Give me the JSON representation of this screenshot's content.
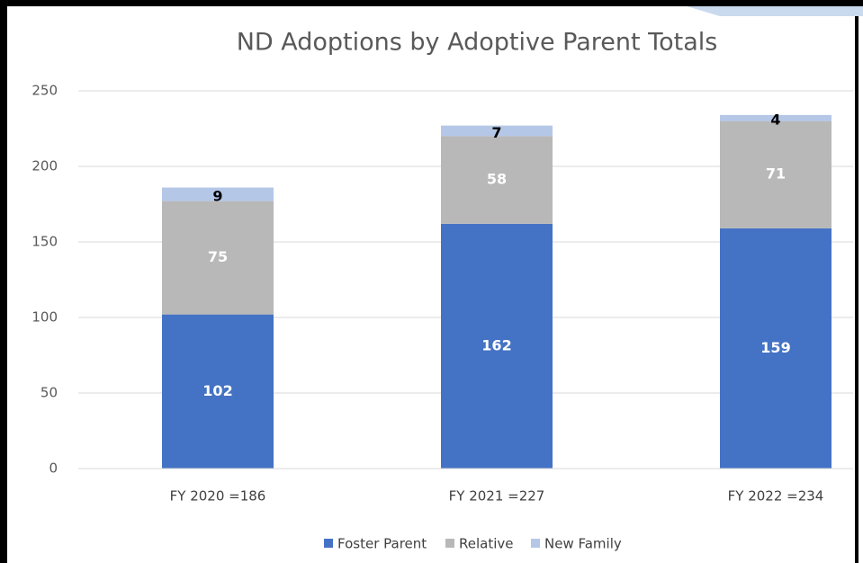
{
  "chart_data": {
    "type": "stacked_bar",
    "title": "ND Adoptions by Adoptive Parent Totals",
    "categories": [
      "FY 2020 =186",
      "FY 2021 =227",
      "FY 2022 =234"
    ],
    "series": [
      {
        "name": "Foster Parent",
        "color": "#4472c4",
        "values": [
          102,
          162,
          159
        ]
      },
      {
        "name": "Relative",
        "color": "#b8b8b8",
        "values": [
          75,
          58,
          71
        ]
      },
      {
        "name": "New Family",
        "color": "#b4c7e7",
        "values": [
          9,
          7,
          4
        ]
      }
    ],
    "ylim": [
      0,
      250
    ],
    "yticks": [
      0,
      50,
      100,
      150,
      200,
      250
    ],
    "grid": true,
    "legend": "bottom"
  }
}
